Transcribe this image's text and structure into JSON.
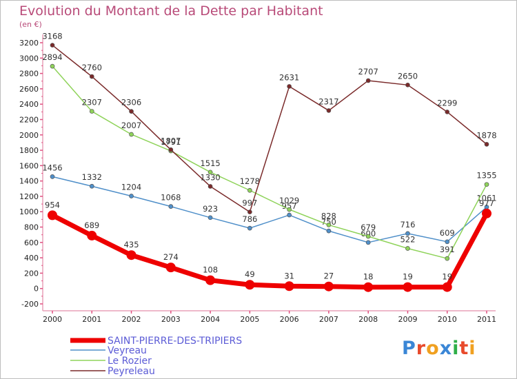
{
  "header": {
    "title": "Evolution du Montant de la Dette par Habitant",
    "unit": "(en €)"
  },
  "logo": {
    "text": "Proxiti",
    "letter_colors": [
      "#3a86d6",
      "#e84a2c",
      "#f0a020",
      "#3a86d6",
      "#2fae48",
      "#e84a2c",
      "#f0a020"
    ]
  },
  "chart_data": {
    "type": "line",
    "title": "Evolution du Montant de la Dette par Habitant",
    "ylabel": "(en €)",
    "xlabel": "",
    "x": [
      "2000",
      "2001",
      "2002",
      "2003",
      "2004",
      "2005",
      "2006",
      "2007",
      "2008",
      "2009",
      "2010",
      "2011"
    ],
    "yticks": [
      -200,
      0,
      200,
      400,
      600,
      800,
      1000,
      1200,
      1400,
      1600,
      1800,
      2000,
      2200,
      2400,
      2600,
      2800,
      3000,
      3200
    ],
    "ylim": [
      -200,
      3300
    ],
    "grid": false,
    "legend_position": "bottom-left",
    "series": [
      {
        "name": "SAINT-PIERRE-DES-TRIPIERS",
        "color": "#ee0000",
        "values": [
          954,
          689,
          435,
          274,
          108,
          49,
          31,
          27,
          18,
          19,
          19,
          977
        ],
        "labels": [
          "954",
          "689",
          "435",
          "274",
          "108",
          "49",
          "31",
          "27",
          "18",
          "19",
          "19",
          "977"
        ]
      },
      {
        "name": "Veyreau",
        "color": "#4f8fc9",
        "values": [
          1456,
          1332,
          1204,
          1068,
          923,
          786,
          957,
          750,
          600,
          716,
          609,
          1061
        ],
        "labels": [
          "1456",
          "1332",
          "1204",
          "1068",
          "923",
          "786",
          "957",
          "750",
          "600",
          "716",
          "609",
          "1061"
        ]
      },
      {
        "name": "Le Rozier",
        "color": "#8fd35a",
        "values": [
          2894,
          2307,
          2007,
          1791,
          1515,
          1278,
          1029,
          828,
          679,
          522,
          391,
          1355
        ],
        "labels": [
          "2894",
          "2307",
          "2007",
          "1791",
          "1515",
          "1278",
          "1029",
          "828",
          "679",
          "522",
          "391",
          "1355"
        ]
      },
      {
        "name": "Peyreleau",
        "color": "#7a2a2a",
        "values": [
          3168,
          2760,
          2306,
          1807,
          1330,
          997,
          2631,
          2317,
          2707,
          2650,
          2299,
          1878
        ],
        "labels": [
          "3168",
          "2760",
          "2306",
          "1807",
          "1330",
          "997",
          "2631",
          "2317",
          "2707",
          "2650",
          "2299",
          "1878"
        ]
      }
    ]
  }
}
